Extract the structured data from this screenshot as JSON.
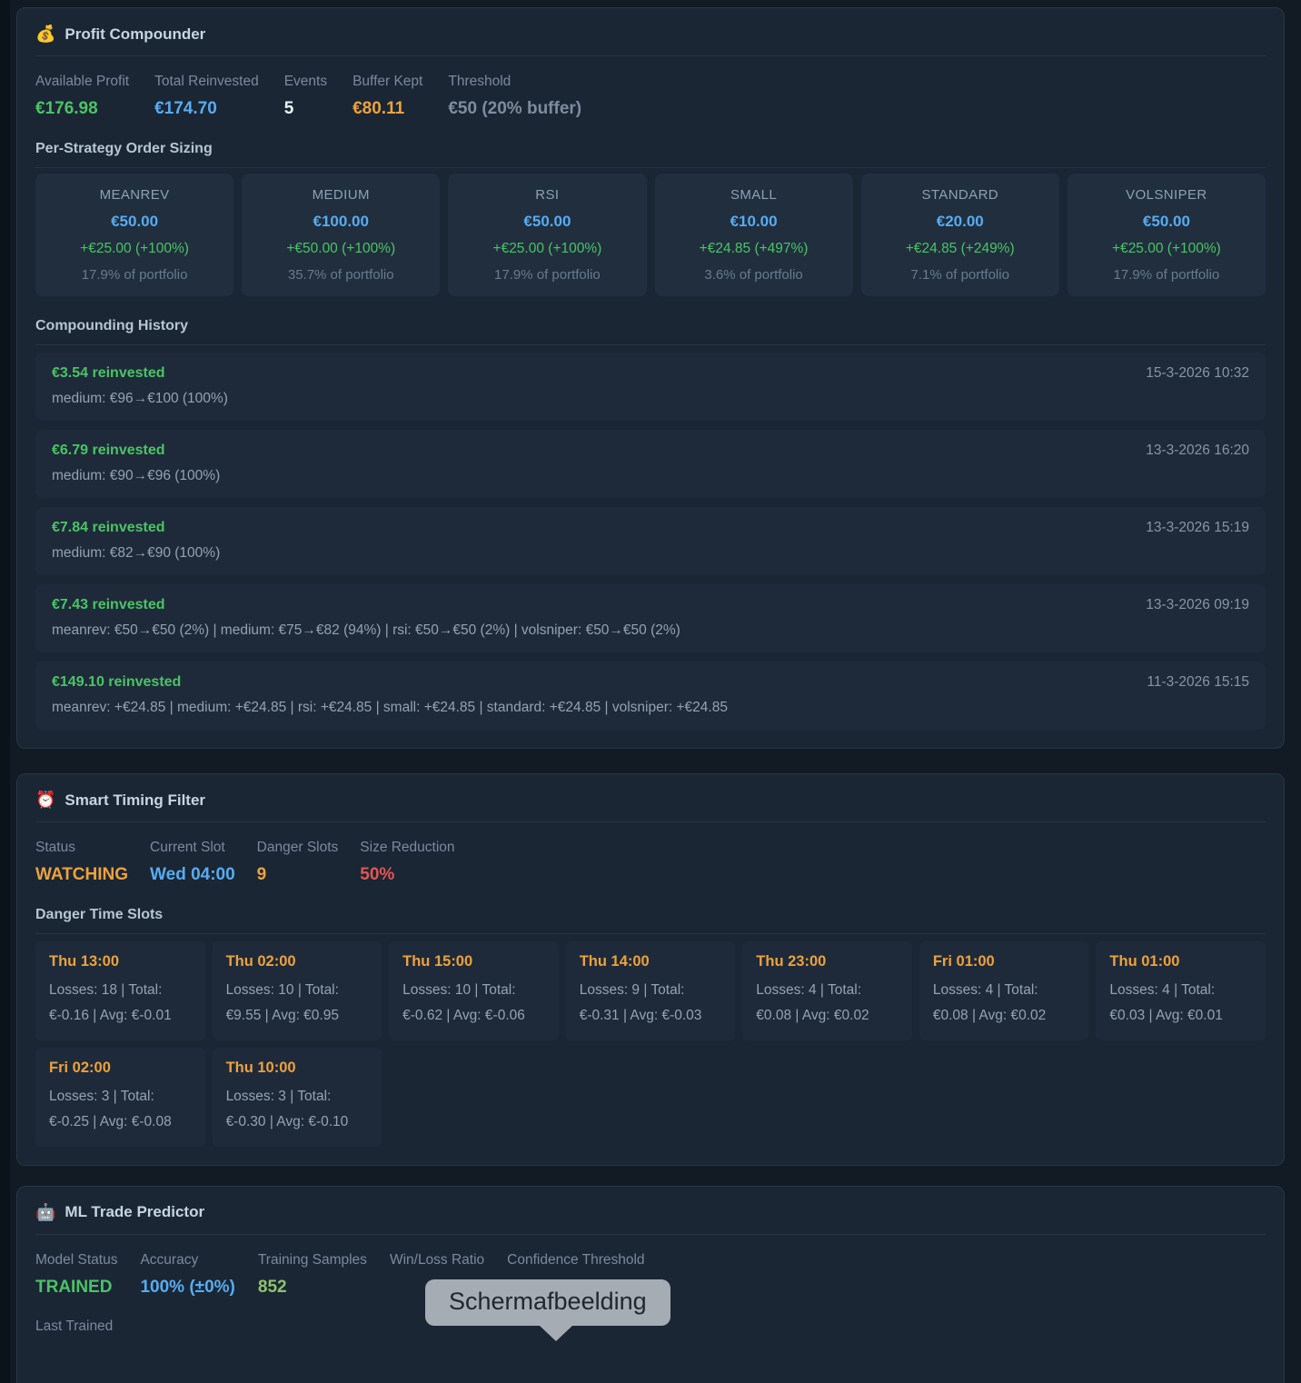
{
  "profit_compounder": {
    "icon": "💰",
    "title": "Profit Compounder",
    "stats": [
      {
        "label": "Available Profit",
        "value": "€176.98",
        "color": "green"
      },
      {
        "label": "Total Reinvested",
        "value": "€174.70",
        "color": "blue"
      },
      {
        "label": "Events",
        "value": "5",
        "color": "white"
      },
      {
        "label": "Buffer Kept",
        "value": "€80.11",
        "color": "orange"
      },
      {
        "label": "Threshold",
        "value": "€50 (20% buffer)",
        "color": "gray"
      }
    ],
    "order_sizing_title": "Per-Strategy Order Sizing",
    "strategies": [
      {
        "name": "MEANREV",
        "size": "€50.00",
        "gain": "+€25.00 (+100%)",
        "portfolio": "17.9% of portfolio"
      },
      {
        "name": "MEDIUM",
        "size": "€100.00",
        "gain": "+€50.00 (+100%)",
        "portfolio": "35.7% of portfolio"
      },
      {
        "name": "RSI",
        "size": "€50.00",
        "gain": "+€25.00 (+100%)",
        "portfolio": "17.9% of portfolio"
      },
      {
        "name": "SMALL",
        "size": "€10.00",
        "gain": "+€24.85 (+497%)",
        "portfolio": "3.6% of portfolio"
      },
      {
        "name": "STANDARD",
        "size": "€20.00",
        "gain": "+€24.85 (+249%)",
        "portfolio": "7.1% of portfolio"
      },
      {
        "name": "VOLSNIPER",
        "size": "€50.00",
        "gain": "+€25.00 (+100%)",
        "portfolio": "17.9% of portfolio"
      }
    ],
    "history_title": "Compounding History",
    "history": [
      {
        "amount": "€3.54 reinvested",
        "timestamp": "15-3-2026 10:32",
        "detail": "medium: €96→€100 (100%)"
      },
      {
        "amount": "€6.79 reinvested",
        "timestamp": "13-3-2026 16:20",
        "detail": "medium: €90→€96 (100%)"
      },
      {
        "amount": "€7.84 reinvested",
        "timestamp": "13-3-2026 15:19",
        "detail": "medium: €82→€90 (100%)"
      },
      {
        "amount": "€7.43 reinvested",
        "timestamp": "13-3-2026 09:19",
        "detail": "meanrev: €50→€50 (2%) | medium: €75→€82 (94%) | rsi: €50→€50 (2%) | volsniper: €50→€50 (2%)"
      },
      {
        "amount": "€149.10 reinvested",
        "timestamp": "11-3-2026 15:15",
        "detail": "meanrev: +€24.85 | medium: +€24.85 | rsi: +€24.85 | small: +€24.85 | standard: +€24.85 | volsniper: +€24.85"
      }
    ]
  },
  "smart_timing": {
    "icon": "⏰",
    "title": "Smart Timing Filter",
    "stats": [
      {
        "label": "Status",
        "value": "WATCHING",
        "color": "orange"
      },
      {
        "label": "Current Slot",
        "value": "Wed 04:00",
        "color": "blue"
      },
      {
        "label": "Danger Slots",
        "value": "9",
        "color": "orange"
      },
      {
        "label": "Size Reduction",
        "value": "50%",
        "color": "red"
      }
    ],
    "danger_title": "Danger Time Slots",
    "danger_slots": [
      {
        "slot": "Thu 13:00",
        "detail": "Losses: 18 | Total: €-0.16 | Avg: €-0.01"
      },
      {
        "slot": "Thu 02:00",
        "detail": "Losses: 10 | Total: €9.55 | Avg: €0.95"
      },
      {
        "slot": "Thu 15:00",
        "detail": "Losses: 10 | Total: €-0.62 | Avg: €-0.06"
      },
      {
        "slot": "Thu 14:00",
        "detail": "Losses: 9 | Total: €-0.31 | Avg: €-0.03"
      },
      {
        "slot": "Thu 23:00",
        "detail": "Losses: 4 | Total: €0.08 | Avg: €0.02"
      },
      {
        "slot": "Fri 01:00",
        "detail": "Losses: 4 | Total: €0.08 | Avg: €0.02"
      },
      {
        "slot": "Thu 01:00",
        "detail": "Losses: 4 | Total: €0.03 | Avg: €0.01"
      },
      {
        "slot": "Fri 02:00",
        "detail": "Losses: 3 | Total: €-0.25 | Avg: €-0.08"
      },
      {
        "slot": "Thu 10:00",
        "detail": "Losses: 3 | Total: €-0.30 | Avg: €-0.10"
      }
    ]
  },
  "ml_predictor": {
    "icon": "🤖",
    "title": "ML Trade Predictor",
    "stats": [
      {
        "label": "Model Status",
        "value": "TRAINED",
        "color": "green"
      },
      {
        "label": "Accuracy",
        "value": "100% (±0%)",
        "color": "blue"
      },
      {
        "label": "Training Samples",
        "value": "852",
        "color": "lime"
      },
      {
        "label": "Win/Loss Ratio",
        "value": "",
        "color": "white"
      },
      {
        "label": "Confidence Threshold",
        "value": "",
        "color": "white"
      }
    ],
    "last_trained_label": "Last Trained"
  },
  "tooltip": {
    "text": "Schermafbeelding"
  },
  "colors": {
    "green": "#4ac465",
    "blue": "#57acf0",
    "orange": "#eda23d",
    "red": "#e25555",
    "lime": "#90c26a",
    "panel_bg": "#1a2634",
    "page_bg": "#121a24"
  }
}
